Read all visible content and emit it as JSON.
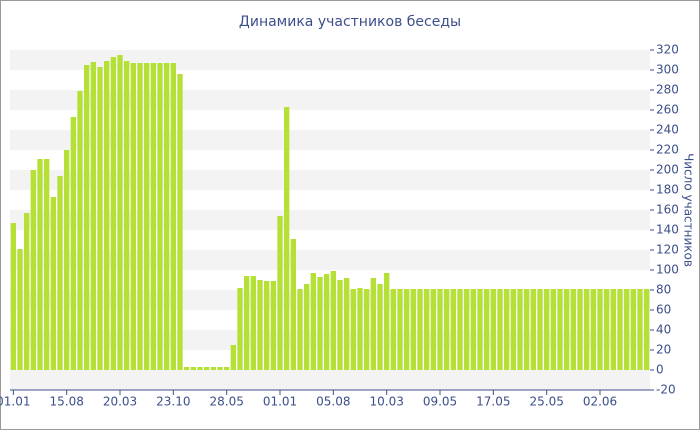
{
  "chart_data": {
    "type": "bar",
    "title": "Динамика участников беседы",
    "y_label": "Число участников",
    "categories": [
      "01.01",
      null,
      null,
      null,
      null,
      null,
      null,
      null,
      "15.08",
      null,
      null,
      null,
      null,
      null,
      null,
      null,
      "20.03",
      null,
      null,
      null,
      null,
      null,
      null,
      null,
      "23.10",
      null,
      null,
      null,
      null,
      null,
      null,
      null,
      "28.05",
      null,
      null,
      null,
      null,
      null,
      null,
      null,
      "01.01",
      null,
      null,
      null,
      null,
      null,
      null,
      null,
      "05.08",
      null,
      null,
      null,
      null,
      null,
      null,
      null,
      "10.03",
      null,
      null,
      null,
      null,
      null,
      null,
      null,
      "09.05",
      null,
      null,
      null,
      null,
      null,
      null,
      null,
      "17.05",
      null,
      null,
      null,
      null,
      null,
      null,
      null,
      "25.05",
      null,
      null,
      null,
      null,
      null,
      null,
      null,
      "02.06",
      null,
      null,
      null,
      null,
      null,
      null,
      null
    ],
    "values": [
      147,
      121,
      157,
      200,
      211,
      211,
      173,
      194,
      220,
      253,
      279,
      305,
      308,
      303,
      309,
      313,
      315,
      309,
      307,
      307,
      307,
      307,
      307,
      307,
      307,
      296,
      3,
      3,
      3,
      3,
      3,
      3,
      3,
      25,
      82,
      94,
      94,
      90,
      89,
      89,
      154,
      263,
      131,
      81,
      86,
      97,
      93,
      96,
      99,
      90,
      92,
      81,
      82,
      81,
      92,
      86,
      97,
      81,
      81,
      81,
      81,
      81,
      81,
      81,
      81,
      81,
      81,
      81,
      81,
      81,
      81,
      81,
      81,
      81,
      81,
      81,
      81,
      81,
      81,
      81,
      81,
      81,
      81,
      81,
      81,
      81,
      81,
      81,
      81,
      81,
      81,
      81,
      81,
      81,
      81,
      81
    ],
    "color": "#b5e035",
    "ylim": [
      -20,
      320
    ],
    "yticks": [
      -20,
      0,
      20,
      40,
      60,
      80,
      100,
      120,
      140,
      160,
      180,
      200,
      220,
      240,
      260,
      280,
      300,
      320
    ],
    "grid": true
  }
}
